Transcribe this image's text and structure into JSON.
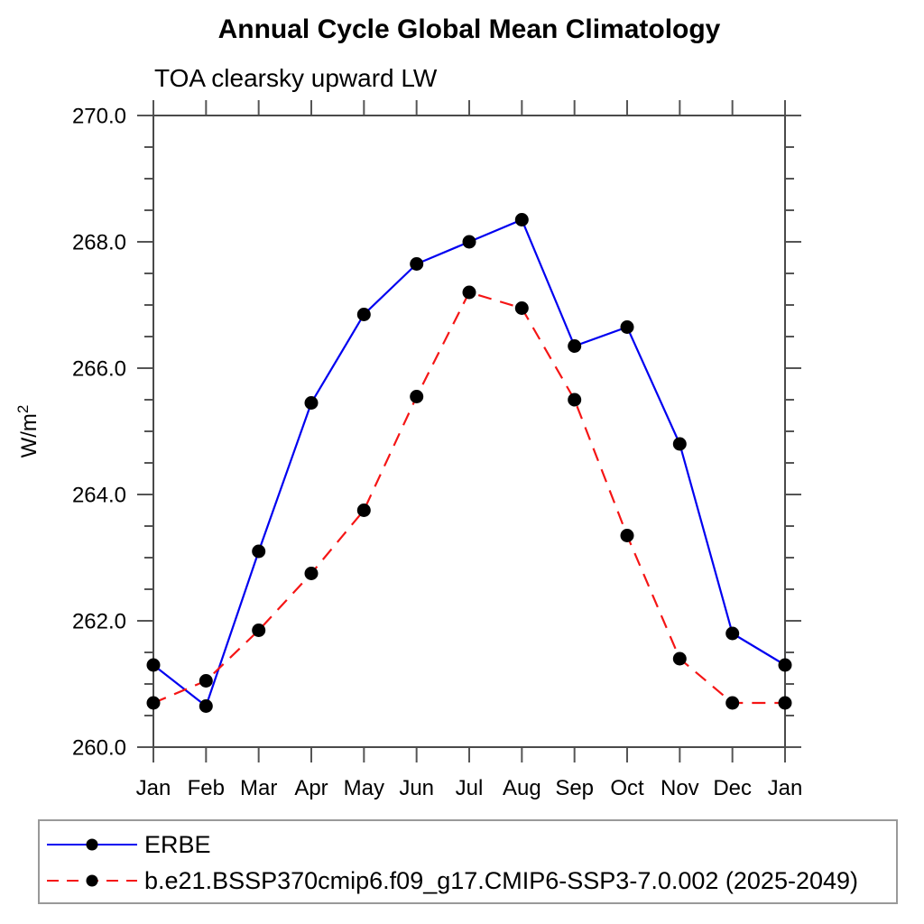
{
  "chart_data": {
    "type": "line",
    "title": "Annual Cycle Global Mean Climatology",
    "subtitle": "TOA clearsky upward LW",
    "ylabel": {
      "base": "W/m",
      "sup": "2"
    },
    "xlabel": "",
    "categories": [
      "Jan",
      "Feb",
      "Mar",
      "Apr",
      "May",
      "Jun",
      "Jul",
      "Aug",
      "Sep",
      "Oct",
      "Nov",
      "Dec",
      "Jan"
    ],
    "ylim": [
      260.0,
      270.0
    ],
    "ytick_step": 2.0,
    "y_minor_step": 0.5,
    "ytick_labels": [
      "260.0",
      "262.0",
      "264.0",
      "266.0",
      "268.0",
      "270.0"
    ],
    "grid": "off",
    "legend_position": "bottom",
    "marker": "filled-circle",
    "marker_color": "#000000",
    "series": [
      {
        "name": "ERBE",
        "color": "#0000f0",
        "line_style": "solid",
        "values": [
          261.3,
          260.65,
          263.1,
          265.45,
          266.85,
          267.65,
          268.0,
          268.35,
          266.35,
          266.65,
          264.8,
          261.8,
          261.3
        ]
      },
      {
        "name": "b.e21.BSSP370cmip6.f09_g17.CMIP6-SSP3-7.0.002 (2025-2049)",
        "color": "#f51515",
        "line_style": "dashed",
        "values": [
          260.7,
          261.05,
          261.85,
          262.75,
          263.75,
          265.55,
          267.2,
          266.95,
          265.5,
          263.35,
          261.4,
          260.7,
          260.7
        ]
      }
    ]
  }
}
